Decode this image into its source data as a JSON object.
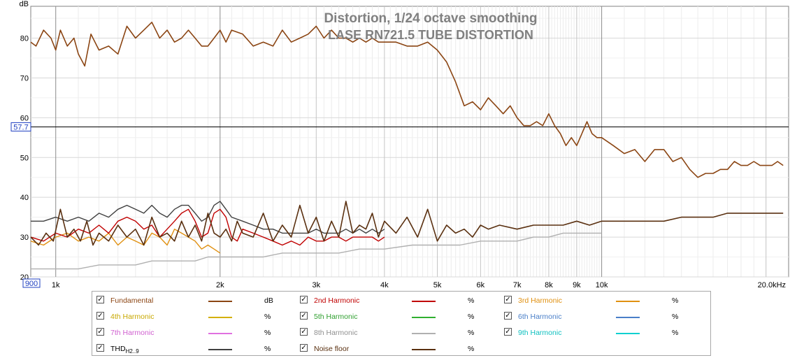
{
  "chart_data": {
    "type": "line",
    "title": "Distortion, 1/24 octave smoothing",
    "subtitle": "LASE RN721.5 TUBE DISTORTION",
    "yaxis_unit": "dB",
    "xaxis_scale": "log",
    "xlim": [
      900,
      22000
    ],
    "ylim": [
      20,
      88
    ],
    "x_ticks": [
      {
        "value": 900,
        "label": "900",
        "boxed": true
      },
      {
        "value": 1000,
        "label": "1k"
      },
      {
        "value": 2000,
        "label": "2k"
      },
      {
        "value": 3000,
        "label": "3k"
      },
      {
        "value": 4000,
        "label": "4k"
      },
      {
        "value": 5000,
        "label": "5k"
      },
      {
        "value": 6000,
        "label": "6k"
      },
      {
        "value": 7000,
        "label": "7k"
      },
      {
        "value": 8000,
        "label": "8k"
      },
      {
        "value": 9000,
        "label": "9k"
      },
      {
        "value": 10000,
        "label": "10k"
      },
      {
        "value": 20000,
        "label": "20.0kHz"
      }
    ],
    "y_ticks": [
      {
        "value": 20,
        "label": "20"
      },
      {
        "value": 30,
        "label": "30"
      },
      {
        "value": 40,
        "label": "40"
      },
      {
        "value": 50,
        "label": "50"
      },
      {
        "value": 60,
        "label": "60"
      },
      {
        "value": 70,
        "label": "70"
      },
      {
        "value": 80,
        "label": "80"
      }
    ],
    "cursor": {
      "value": 57.7,
      "label": "57.7"
    },
    "grid": true,
    "series": [
      {
        "name": "Fundamental",
        "color": "#8b4513",
        "unit": "dB",
        "x": [
          900,
          920,
          950,
          980,
          1000,
          1020,
          1050,
          1080,
          1100,
          1130,
          1160,
          1200,
          1250,
          1300,
          1350,
          1400,
          1450,
          1500,
          1550,
          1600,
          1650,
          1700,
          1750,
          1800,
          1850,
          1900,
          1950,
          2000,
          2050,
          2100,
          2200,
          2300,
          2400,
          2500,
          2600,
          2700,
          2800,
          2900,
          3000,
          3100,
          3200,
          3300,
          3400,
          3500,
          3600,
          3700,
          3800,
          3900,
          4000,
          4200,
          4400,
          4600,
          4800,
          5000,
          5200,
          5400,
          5600,
          5800,
          6000,
          6200,
          6400,
          6600,
          6800,
          7000,
          7200,
          7400,
          7600,
          7800,
          8000,
          8200,
          8400,
          8600,
          8800,
          9000,
          9200,
          9400,
          9600,
          9800,
          10000,
          10500,
          11000,
          11500,
          12000,
          12500,
          13000,
          13500,
          14000,
          14500,
          15000,
          15500,
          16000,
          16500,
          17000,
          17500,
          18000,
          18500,
          19000,
          19500,
          20000,
          20500,
          21000,
          21500
        ],
        "values": [
          79,
          78,
          82,
          80,
          77,
          82,
          78,
          80,
          76,
          73,
          81,
          77,
          78,
          76,
          83,
          80,
          82,
          84,
          80,
          82,
          79,
          80,
          82,
          80,
          78,
          78,
          80,
          82,
          79,
          82,
          81,
          78,
          79,
          78,
          82,
          79,
          80,
          81,
          83,
          80,
          82,
          80,
          80,
          79,
          80,
          79,
          80,
          79,
          79,
          79,
          78,
          78,
          79,
          77,
          74,
          69,
          63,
          64,
          62,
          65,
          63,
          61,
          63,
          60,
          58,
          58,
          59,
          58,
          61,
          58,
          56,
          53,
          55,
          53,
          56,
          59,
          56,
          55,
          55,
          53,
          51,
          52,
          49,
          52,
          52,
          49,
          50,
          47,
          45,
          46,
          46,
          47,
          47,
          49,
          48,
          48,
          49,
          48,
          48,
          48,
          49,
          48
        ]
      },
      {
        "name": "2nd Harmonic",
        "color": "#c00000",
        "unit": "%",
        "x": [
          900,
          950,
          1000,
          1050,
          1100,
          1150,
          1200,
          1250,
          1300,
          1350,
          1400,
          1450,
          1500,
          1550,
          1600,
          1650,
          1700,
          1750,
          1800,
          1850,
          1900,
          1950,
          2000,
          2050,
          2100,
          2150,
          2200,
          2300,
          2400,
          2500,
          2600,
          2700,
          2800,
          2900,
          3000,
          3100,
          3200,
          3300,
          3400,
          3500,
          3600,
          3700,
          3800,
          3900,
          4000
        ],
        "values": [
          30,
          29,
          31,
          30,
          32,
          31,
          33,
          31,
          34,
          35,
          34,
          32,
          33,
          30,
          32,
          34,
          36,
          37,
          34,
          30,
          31,
          36,
          37,
          35,
          30,
          29,
          32,
          31,
          30,
          29,
          28,
          29,
          28,
          30,
          29,
          29,
          30,
          30,
          29,
          30,
          30,
          30,
          30,
          29,
          30
        ]
      },
      {
        "name": "3rd Harmonic",
        "color": "#e09010",
        "unit": "%",
        "x": [
          900,
          950,
          1000,
          1050,
          1100,
          1150,
          1200,
          1250,
          1300,
          1350,
          1400,
          1450,
          1500,
          1550,
          1600,
          1650,
          1700,
          1750,
          1800,
          1850,
          1900,
          1950,
          2000
        ],
        "values": [
          29,
          28,
          30,
          31,
          29,
          30,
          29,
          31,
          28,
          30,
          29,
          28,
          31,
          30,
          28,
          32,
          31,
          30,
          29,
          27,
          28,
          27,
          26
        ]
      },
      {
        "name": "4th Harmonic",
        "color": "#d4b000",
        "unit": "%",
        "x": [],
        "values": []
      },
      {
        "name": "5th Harmonic",
        "color": "#30b030",
        "unit": "%",
        "x": [],
        "values": []
      },
      {
        "name": "6th Harmonic",
        "color": "#4a7fc8",
        "unit": "%",
        "x": [],
        "values": []
      },
      {
        "name": "7th Harmonic",
        "color": "#e070e0",
        "unit": "%",
        "x": [],
        "values": []
      },
      {
        "name": "8th Harmonic",
        "color": "#b0b0b0",
        "unit": "%",
        "x": [
          900,
          1000,
          1100,
          1200,
          1300,
          1400,
          1500,
          1600,
          1700,
          1800,
          1900,
          2000,
          2200,
          2400,
          2600,
          2800,
          3000,
          3300,
          3600,
          4000,
          4500,
          5000,
          5500,
          6000,
          6500,
          7000,
          7500,
          8000,
          8500,
          9000,
          9500,
          10000
        ],
        "values": [
          22,
          22,
          22,
          23,
          23,
          23,
          24,
          24,
          24,
          24,
          25,
          25,
          25,
          25,
          26,
          26,
          26,
          26,
          27,
          27,
          28,
          28,
          28,
          29,
          29,
          29,
          30,
          30,
          31,
          31,
          31,
          31
        ]
      },
      {
        "name": "9th Harmonic",
        "color": "#10d0d0",
        "unit": "%",
        "x": [],
        "values": []
      },
      {
        "name": "THD",
        "name_sub": "H2..9",
        "color": "#404040",
        "unit": "%",
        "x": [
          900,
          950,
          1000,
          1050,
          1100,
          1150,
          1200,
          1250,
          1300,
          1350,
          1400,
          1450,
          1500,
          1550,
          1600,
          1650,
          1700,
          1750,
          1800,
          1850,
          1900,
          1950,
          2000,
          2050,
          2100,
          2200,
          2300,
          2400,
          2500,
          2600,
          2700,
          2800,
          2900,
          3000,
          3100,
          3200,
          3300,
          3400,
          3500,
          3600,
          3700,
          3800,
          3900,
          4000
        ],
        "values": [
          34,
          34,
          35,
          34,
          35,
          34,
          36,
          35,
          37,
          38,
          37,
          36,
          38,
          36,
          35,
          37,
          38,
          38,
          36,
          34,
          35,
          38,
          39,
          37,
          35,
          34,
          33,
          32,
          32,
          31,
          31,
          31,
          31,
          32,
          31,
          31,
          31,
          32,
          31,
          32,
          31,
          32,
          31,
          32
        ]
      },
      {
        "name": "Noise floor",
        "color": "#5a3010",
        "unit": "%",
        "x": [
          900,
          930,
          960,
          990,
          1020,
          1050,
          1080,
          1110,
          1140,
          1170,
          1200,
          1250,
          1300,
          1350,
          1400,
          1450,
          1500,
          1550,
          1600,
          1650,
          1700,
          1750,
          1800,
          1850,
          1900,
          1950,
          2000,
          2050,
          2100,
          2150,
          2200,
          2300,
          2400,
          2500,
          2600,
          2700,
          2800,
          2900,
          3000,
          3100,
          3200,
          3300,
          3400,
          3500,
          3600,
          3700,
          3800,
          3900,
          4000,
          4200,
          4400,
          4600,
          4800,
          5000,
          5200,
          5400,
          5600,
          5800,
          6000,
          6200,
          6500,
          7000,
          7500,
          8000,
          8500,
          9000,
          9500,
          10000,
          11000,
          12000,
          13000,
          14000,
          15000,
          16000,
          17000,
          18000,
          19000,
          20000,
          21000,
          21500
        ],
        "values": [
          30,
          28,
          31,
          29,
          37,
          30,
          32,
          29,
          34,
          28,
          31,
          29,
          33,
          30,
          32,
          28,
          35,
          30,
          31,
          29,
          34,
          30,
          33,
          29,
          36,
          31,
          30,
          32,
          29,
          34,
          31,
          30,
          36,
          29,
          33,
          30,
          38,
          31,
          35,
          29,
          34,
          30,
          39,
          31,
          33,
          32,
          36,
          30,
          34,
          31,
          35,
          30,
          37,
          29,
          33,
          31,
          32,
          30,
          33,
          32,
          33,
          32,
          33,
          33,
          33,
          34,
          33,
          34,
          34,
          34,
          34,
          35,
          35,
          35,
          36,
          36,
          36,
          36,
          36,
          36
        ]
      }
    ]
  },
  "legend": {
    "items": [
      {
        "label": "Fundamental",
        "unit": "dB",
        "checked": "✓",
        "color": "#8b4513"
      },
      {
        "label": "2nd Harmonic",
        "unit": "%",
        "checked": "✓",
        "color": "#c00000"
      },
      {
        "label": "3rd Harmonic",
        "unit": "%",
        "checked": "✓",
        "color": "#e09010"
      },
      {
        "label": "4th Harmonic",
        "unit": "%",
        "checked": "✓",
        "color": "#d4b000"
      },
      {
        "label": "5th Harmonic",
        "unit": "%",
        "checked": "✓",
        "color": "#30b030"
      },
      {
        "label": "6th Harmonic",
        "unit": "%",
        "checked": "✓",
        "color": "#4a7fc8"
      },
      {
        "label": "7th Harmonic",
        "unit": "%",
        "checked": "✓",
        "color": "#e070e0"
      },
      {
        "label": "8th Harmonic",
        "unit": "%",
        "checked": "✓",
        "color": "#b0b0b0"
      },
      {
        "label": "9th Harmonic",
        "unit": "%",
        "checked": "✓",
        "color": "#10d0d0"
      },
      {
        "label": "THD",
        "sub": "H2..9",
        "unit": "%",
        "checked": "✓",
        "color": "#404040"
      },
      {
        "label": "Noise floor",
        "unit": "%",
        "checked": "✓",
        "color": "#5a3010"
      }
    ]
  }
}
